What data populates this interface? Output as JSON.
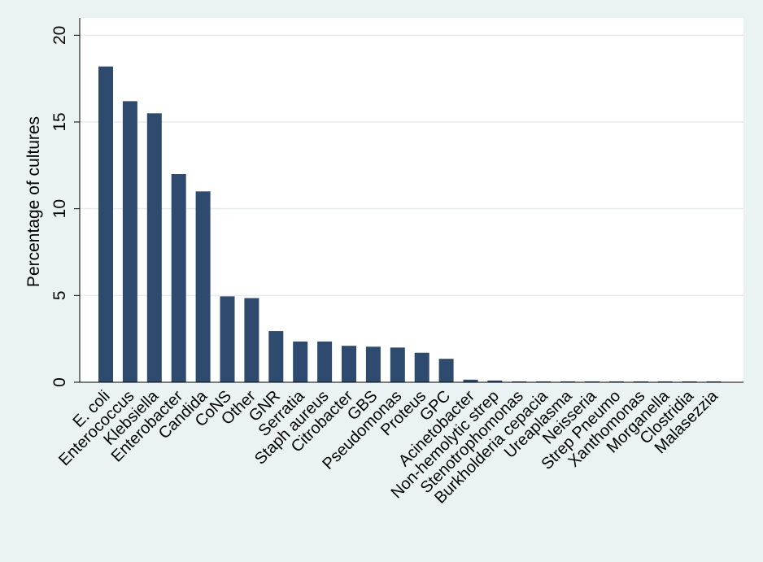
{
  "chart_data": {
    "type": "bar",
    "title": "",
    "xlabel": "",
    "ylabel": "Percentage of cultures",
    "ylim": [
      0,
      21
    ],
    "yticks": [
      0,
      5,
      10,
      15,
      20
    ],
    "grid": true,
    "bar_color": "#2e4a6e",
    "categories": [
      "E. coli",
      "Enterococcus",
      "Klebsiella",
      "Enterobacter",
      "Candida",
      "CoNS",
      "Other",
      "GNR",
      "Serratia",
      "Staph aureus",
      "Citrobacter",
      "GBS",
      "Pseudomonas",
      "Proteus",
      "GPC",
      "Acinetobacter",
      "Non-hemolytic strep",
      "Stenotrophomonas",
      "Burkholderia cepacia",
      "Ureaplasma",
      "Neisseria",
      "Strep Pneumo",
      "Xanthomonas",
      "Morganella",
      "Clostridia",
      "Malasezzia"
    ],
    "values": [
      18.2,
      16.2,
      15.5,
      12.0,
      11.0,
      4.95,
      4.85,
      2.95,
      2.35,
      2.35,
      2.1,
      2.05,
      2.0,
      1.7,
      1.35,
      0.15,
      0.1,
      0.05,
      0.05,
      0.05,
      0.05,
      0.05,
      0.05,
      0.05,
      0.05,
      0.05
    ]
  },
  "colors": {
    "background": "#eaf2f3",
    "plot_background": "#ffffff",
    "grid": "#e6ecee",
    "bar": "#2e4a6e"
  }
}
